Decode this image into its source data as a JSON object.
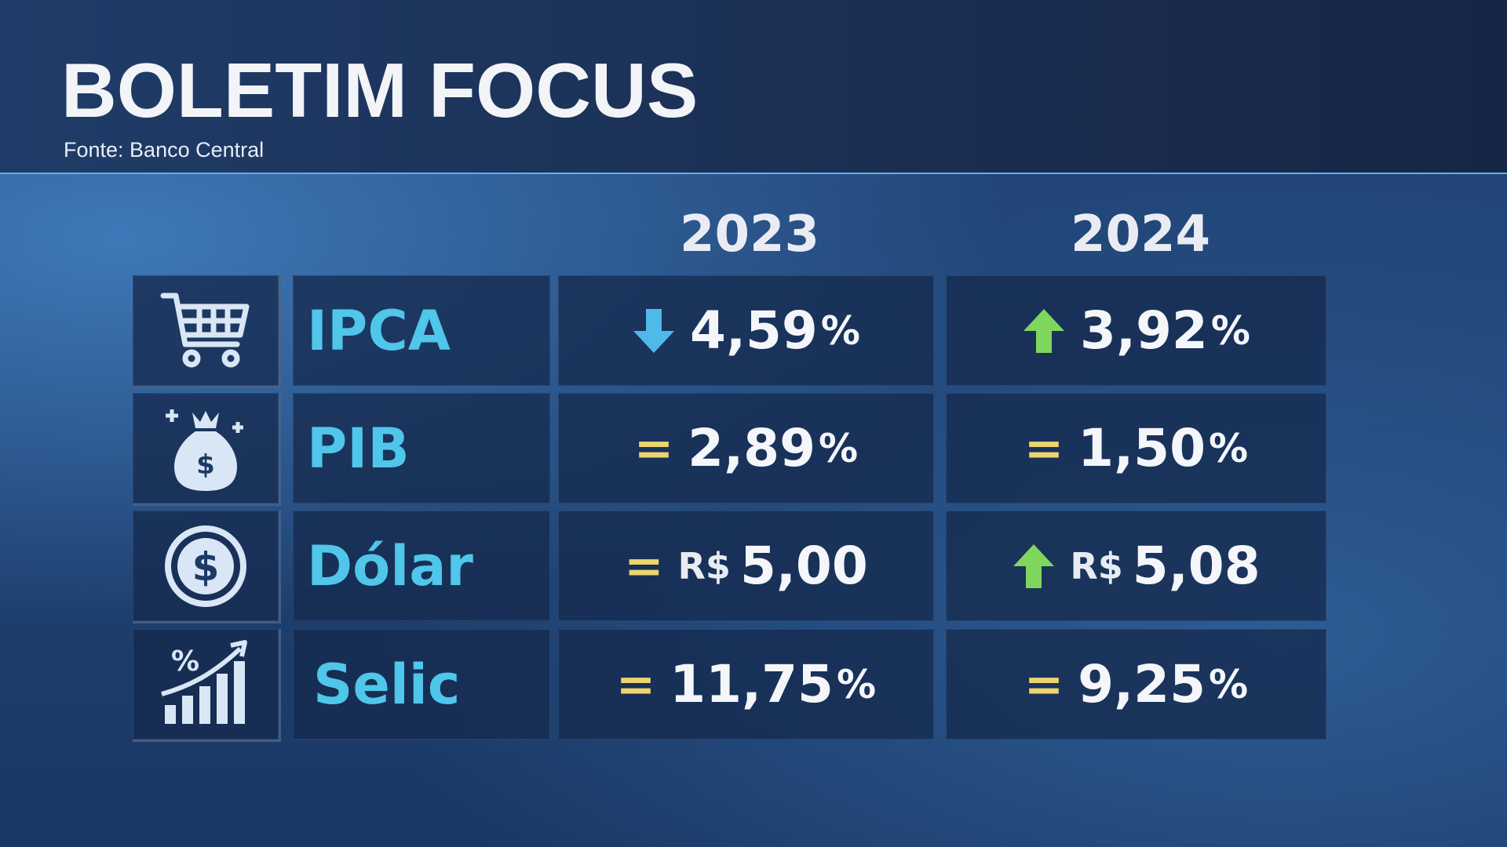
{
  "header": {
    "title": "BOLETIM FOCUS",
    "source": "Fonte: Banco Central"
  },
  "table": {
    "columns": [
      "2023",
      "2024"
    ],
    "rows": [
      {
        "label": "IPCA",
        "cells": [
          {
            "trend": "down",
            "value": "4,59",
            "unit": "%"
          },
          {
            "trend": "up",
            "value": "3,92",
            "unit": "%"
          }
        ]
      },
      {
        "label": "PIB",
        "cells": [
          {
            "trend": "=",
            "value": "2,89",
            "unit": "%"
          },
          {
            "trend": "=",
            "value": "1,50",
            "unit": "%"
          }
        ]
      },
      {
        "label": "Dólar",
        "cells": [
          {
            "trend": "=",
            "prefix": "R$",
            "value": "5,00"
          },
          {
            "trend": "up",
            "prefix": "R$",
            "value": "5,08"
          }
        ]
      },
      {
        "label": "Selic",
        "cells": [
          {
            "trend": "=",
            "value": "11,75",
            "unit": "%"
          },
          {
            "trend": "=",
            "value": "9,25",
            "unit": "%"
          }
        ]
      }
    ]
  }
}
